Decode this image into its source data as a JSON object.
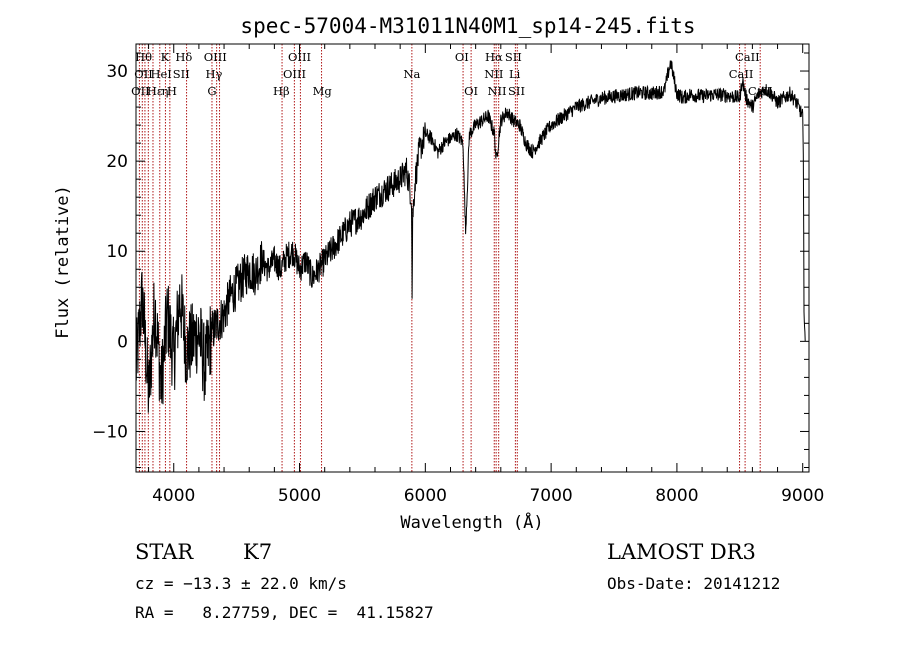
{
  "chart_data": {
    "type": "line",
    "title": "spec-57004-M31011N40M1_sp14-245.fits",
    "xlabel": "Wavelength (Å)",
    "ylabel": "Flux (relative)",
    "xlim": [
      3700,
      9050
    ],
    "ylim": [
      -14.5,
      33
    ],
    "xticks": [
      4000,
      5000,
      6000,
      7000,
      8000,
      9000
    ],
    "yticks": [
      -10,
      0,
      10,
      20,
      30
    ],
    "grid": false,
    "series": [
      {
        "name": "flux",
        "x": [
          3700,
          3750,
          3800,
          3850,
          3900,
          3950,
          4000,
          4050,
          4100,
          4150,
          4200,
          4250,
          4300,
          4350,
          4400,
          4450,
          4500,
          4550,
          4600,
          4650,
          4700,
          4750,
          4800,
          4850,
          4900,
          4950,
          5000,
          5050,
          5100,
          5150,
          5200,
          5250,
          5300,
          5350,
          5400,
          5450,
          5500,
          5550,
          5600,
          5650,
          5700,
          5750,
          5800,
          5850,
          5890,
          5895,
          5900,
          5920,
          5950,
          6000,
          6050,
          6100,
          6150,
          6200,
          6250,
          6300,
          6320,
          6350,
          6400,
          6450,
          6500,
          6550,
          6563,
          6600,
          6650,
          6700,
          6750,
          6800,
          6850,
          6900,
          6950,
          7000,
          7050,
          7100,
          7150,
          7200,
          7300,
          7400,
          7500,
          7600,
          7700,
          7800,
          7900,
          7950,
          8000,
          8050,
          8100,
          8200,
          8300,
          8400,
          8500,
          8520,
          8550,
          8600,
          8650,
          8700,
          8750,
          8800,
          8850,
          8900,
          8950,
          9000,
          9005,
          9010,
          9020
        ],
        "y": [
          -3,
          5,
          -6,
          4,
          -5,
          3,
          -2,
          5,
          -1,
          0,
          1,
          -3,
          1,
          2,
          3,
          5,
          6,
          7,
          8,
          7.5,
          9,
          8,
          9,
          8,
          9.5,
          10,
          8,
          9,
          7,
          8,
          9,
          10,
          11,
          12,
          13,
          13.5,
          14,
          15,
          16,
          16.5,
          17,
          17.5,
          18,
          19,
          16,
          5,
          14,
          18,
          21,
          23,
          22.5,
          21,
          22,
          22.5,
          23,
          22,
          12,
          23,
          24,
          24.5,
          25,
          23,
          20,
          24.5,
          25.5,
          24.5,
          24,
          22,
          21,
          22,
          23,
          24,
          24.5,
          25,
          25.5,
          26,
          26.5,
          27,
          27.2,
          27.4,
          27.6,
          27.5,
          27.8,
          31,
          27.5,
          27,
          27.4,
          27.2,
          27.4,
          27.3,
          27,
          29,
          27,
          26,
          27.5,
          28,
          27.5,
          26.5,
          27,
          27.5,
          26.5,
          25,
          20,
          4,
          0
        ]
      }
    ],
    "lines_lambda": [
      3727,
      3750,
      3771,
      3798,
      3835,
      3889,
      3934,
      3969,
      4102,
      4304,
      4341,
      4364,
      4861,
      4959,
      5007,
      5175,
      5893,
      6300,
      6364,
      6548,
      6563,
      6583,
      6716,
      6731,
      8498,
      8542,
      8662
    ],
    "line_labels": [
      {
        "text": "Hθ",
        "x": 3760,
        "row": 0
      },
      {
        "text": "K",
        "x": 3930,
        "row": 0
      },
      {
        "text": "Hδ",
        "x": 4080,
        "row": 0
      },
      {
        "text": "OIII",
        "x": 4330,
        "row": 0
      },
      {
        "text": "OIII",
        "x": 5000,
        "row": 0
      },
      {
        "text": "Na",
        "x": 5893,
        "row": 1
      },
      {
        "text": "OI",
        "x": 6290,
        "row": 0
      },
      {
        "text": "Hα",
        "x": 6545,
        "row": 0
      },
      {
        "text": "SII",
        "x": 6700,
        "row": 0
      },
      {
        "text": "CaII",
        "x": 8560,
        "row": 0
      },
      {
        "text": "OII",
        "x": 3760,
        "row": 1
      },
      {
        "text": "HeI",
        "x": 3900,
        "row": 1
      },
      {
        "text": "SII",
        "x": 4060,
        "row": 1
      },
      {
        "text": "Hγ",
        "x": 4320,
        "row": 1
      },
      {
        "text": "OIII",
        "x": 4960,
        "row": 1
      },
      {
        "text": "NII",
        "x": 6545,
        "row": 1
      },
      {
        "text": "Li",
        "x": 6710,
        "row": 1
      },
      {
        "text": "CaII",
        "x": 8510,
        "row": 1
      },
      {
        "text": "OII",
        "x": 3735,
        "row": 2
      },
      {
        "text": "Hε",
        "x": 3850,
        "row": 2
      },
      {
        "text": "η",
        "x": 3930,
        "row": 2
      },
      {
        "text": "H",
        "x": 3985,
        "row": 2
      },
      {
        "text": "G",
        "x": 4304,
        "row": 2
      },
      {
        "text": "Hβ",
        "x": 4855,
        "row": 2
      },
      {
        "text": "Mg",
        "x": 5180,
        "row": 2
      },
      {
        "text": "OI",
        "x": 6364,
        "row": 2
      },
      {
        "text": "NII",
        "x": 6570,
        "row": 2
      },
      {
        "text": "SII",
        "x": 6725,
        "row": 2
      },
      {
        "text": "CaII",
        "x": 8662,
        "row": 2
      }
    ]
  },
  "info": {
    "classification": "STAR",
    "subclass": "K7",
    "survey": "LAMOST DR3",
    "cz": "cz = −13.3 ± 22.0 km/s",
    "obs_date": "Obs-Date: 20141212",
    "coords": "RA =   8.27759, DEC =  41.15827"
  },
  "colors": {
    "spectrum": "#000000",
    "line_markers": "#b01818",
    "axes": "#000000"
  }
}
